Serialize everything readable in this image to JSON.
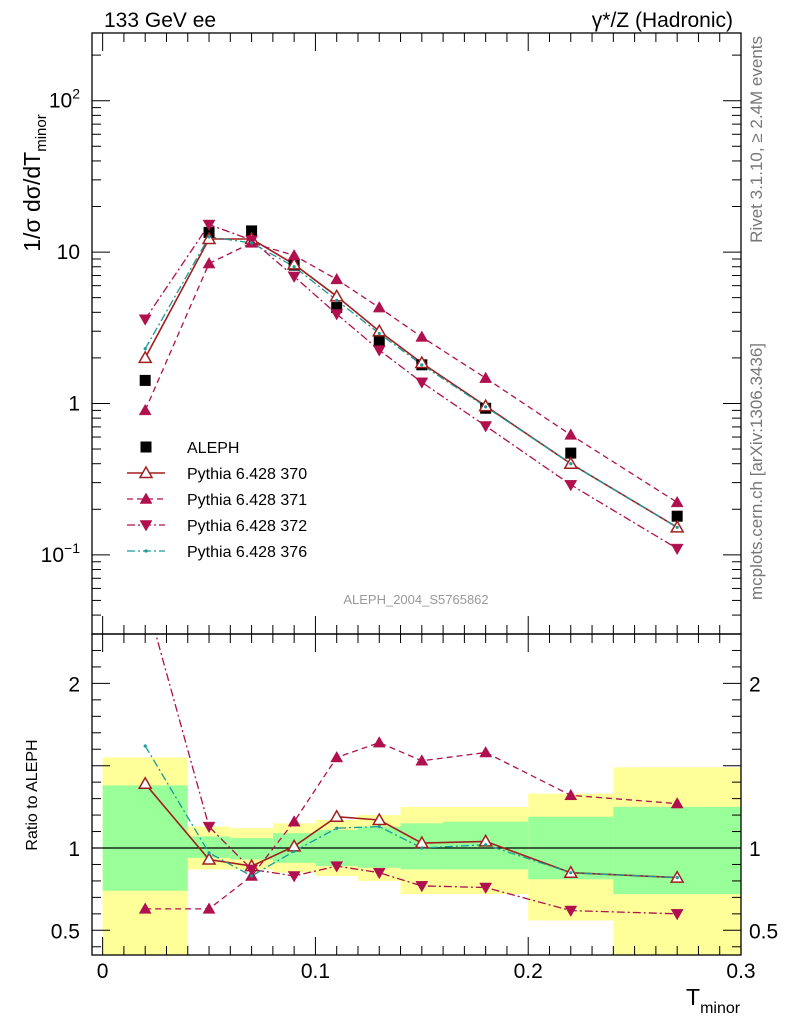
{
  "header": {
    "left": "133 GeV ee",
    "right": "γ*/Z (Hadronic)"
  },
  "side_labels": {
    "rivet": "Rivet 3.1.10, ≥ 2.4M events",
    "mcplots": "mcplots.cern.ch [arXiv:1306.3436]"
  },
  "analysis_id": "ALEPH_2004_S5765862",
  "colors": {
    "data": "#000000",
    "p370": "#a0201f",
    "p371": "#b0104e",
    "p372": "#b0104e",
    "p376": "#1a9a9a",
    "band_inner": "#99ff99",
    "band_outer": "#ffff99"
  },
  "chart_data": [
    {
      "type": "scatter",
      "title": "",
      "ylabel": "1/σ dσ/dT_minor",
      "ylabel_parts": {
        "main": "1/σ  dσ/dT",
        "sub": "minor"
      },
      "yscale": "log",
      "ylim": [
        0.03,
        280
      ],
      "xlim": [
        -0.005,
        0.3
      ],
      "y_ticks": [
        {
          "value": 0.1,
          "label": "10",
          "sup": "−1"
        },
        {
          "value": 1,
          "label": "1",
          "sup": ""
        },
        {
          "value": 10,
          "label": "10",
          "sup": ""
        },
        {
          "value": 100,
          "label": "10",
          "sup": "2"
        }
      ],
      "x": [
        0.02,
        0.05,
        0.07,
        0.09,
        0.11,
        0.13,
        0.15,
        0.18,
        0.22,
        0.27
      ],
      "series": [
        {
          "name": "ALEPH",
          "key": "data",
          "marker": "square",
          "line": "none",
          "values": [
            1.42,
            13.5,
            13.8,
            8.2,
            4.3,
            2.6,
            1.8,
            0.93,
            0.47,
            0.18
          ]
        },
        {
          "name": "Pythia 6.428 370",
          "key": "p370",
          "marker": "triangle-up-open",
          "line": "solid",
          "values": [
            2.0,
            12.2,
            12.2,
            8.3,
            5.1,
            3.0,
            1.85,
            0.96,
            0.4,
            0.152
          ]
        },
        {
          "name": "Pythia 6.428 371",
          "key": "p371",
          "marker": "triangle-up",
          "line": "dashed",
          "values": [
            0.9,
            8.4,
            11.5,
            9.5,
            6.6,
            4.3,
            2.75,
            1.47,
            0.62,
            0.222
          ]
        },
        {
          "name": "Pythia 6.428 372",
          "key": "p372",
          "marker": "triangle-down",
          "line": "dashdot",
          "values": [
            3.6,
            15.2,
            12.0,
            6.9,
            3.9,
            2.25,
            1.38,
            0.71,
            0.29,
            0.11
          ]
        },
        {
          "name": "Pythia 6.428 376",
          "key": "p376",
          "marker": "dot",
          "line": "dashdot",
          "values": [
            2.3,
            12.6,
            11.5,
            8.0,
            4.8,
            2.9,
            1.8,
            0.95,
            0.4,
            0.152
          ]
        }
      ]
    },
    {
      "type": "line",
      "ylabel": "Ratio to ALEPH",
      "xlabel": "T_minor",
      "xlabel_parts": {
        "main": "T",
        "sub": "minor"
      },
      "ylim": [
        0.35,
        2.3
      ],
      "xlim": [
        -0.005,
        0.3
      ],
      "x_ticks": [
        {
          "value": 0,
          "label": "0"
        },
        {
          "value": 0.1,
          "label": "0.1"
        },
        {
          "value": 0.2,
          "label": "0.2"
        },
        {
          "value": 0.3,
          "label": "0.3"
        }
      ],
      "y_ticks": [
        {
          "value": 0.5,
          "label": "0.5"
        },
        {
          "value": 1,
          "label": "1"
        },
        {
          "value": 2,
          "label": "2"
        }
      ],
      "bins": [
        {
          "x0": 0.0,
          "x1": 0.04,
          "inner": [
            0.74,
            1.38
          ],
          "outer": [
            0.35,
            1.55
          ]
        },
        {
          "x0": 0.04,
          "x1": 0.06,
          "inner": [
            0.94,
            1.07
          ],
          "outer": [
            0.87,
            1.13
          ]
        },
        {
          "x0": 0.06,
          "x1": 0.08,
          "inner": [
            0.93,
            1.06
          ],
          "outer": [
            0.87,
            1.12
          ]
        },
        {
          "x0": 0.08,
          "x1": 0.1,
          "inner": [
            0.91,
            1.09
          ],
          "outer": [
            0.85,
            1.15
          ]
        },
        {
          "x0": 0.1,
          "x1": 0.12,
          "inner": [
            0.89,
            1.11
          ],
          "outer": [
            0.83,
            1.17
          ]
        },
        {
          "x0": 0.12,
          "x1": 0.14,
          "inner": [
            0.88,
            1.13
          ],
          "outer": [
            0.8,
            1.2
          ]
        },
        {
          "x0": 0.14,
          "x1": 0.16,
          "inner": [
            0.87,
            1.15
          ],
          "outer": [
            0.72,
            1.25
          ]
        },
        {
          "x0": 0.16,
          "x1": 0.2,
          "inner": [
            0.87,
            1.16
          ],
          "outer": [
            0.72,
            1.25
          ]
        },
        {
          "x0": 0.2,
          "x1": 0.24,
          "inner": [
            0.81,
            1.19
          ],
          "outer": [
            0.56,
            1.33
          ]
        },
        {
          "x0": 0.24,
          "x1": 0.3,
          "inner": [
            0.72,
            1.25
          ],
          "outer": [
            0.35,
            1.49
          ]
        }
      ],
      "x": [
        0.02,
        0.05,
        0.07,
        0.09,
        0.11,
        0.13,
        0.15,
        0.18,
        0.22,
        0.27
      ],
      "series": [
        {
          "name": "Pythia 6.428 370",
          "key": "p370",
          "marker": "triangle-up-open",
          "line": "solid",
          "values": [
            1.39,
            0.93,
            0.89,
            1.01,
            1.19,
            1.17,
            1.03,
            1.04,
            0.85,
            0.82
          ]
        },
        {
          "name": "Pythia 6.428 371",
          "key": "p371",
          "marker": "triangle-up",
          "line": "dashed",
          "values": [
            0.63,
            0.63,
            0.83,
            1.16,
            1.55,
            1.64,
            1.53,
            1.58,
            1.32,
            1.27
          ]
        },
        {
          "name": "Pythia 6.428 372",
          "key": "p372",
          "marker": "triangle-down",
          "line": "dashdot",
          "values": [
            2.53,
            1.13,
            0.87,
            0.83,
            0.89,
            0.85,
            0.77,
            0.76,
            0.62,
            0.6
          ]
        },
        {
          "name": "Pythia 6.428 376",
          "key": "p376",
          "marker": "dot",
          "line": "dashdot",
          "values": [
            1.62,
            0.97,
            0.83,
            0.98,
            1.12,
            1.13,
            1.0,
            1.02,
            0.85,
            0.82
          ]
        }
      ]
    }
  ]
}
